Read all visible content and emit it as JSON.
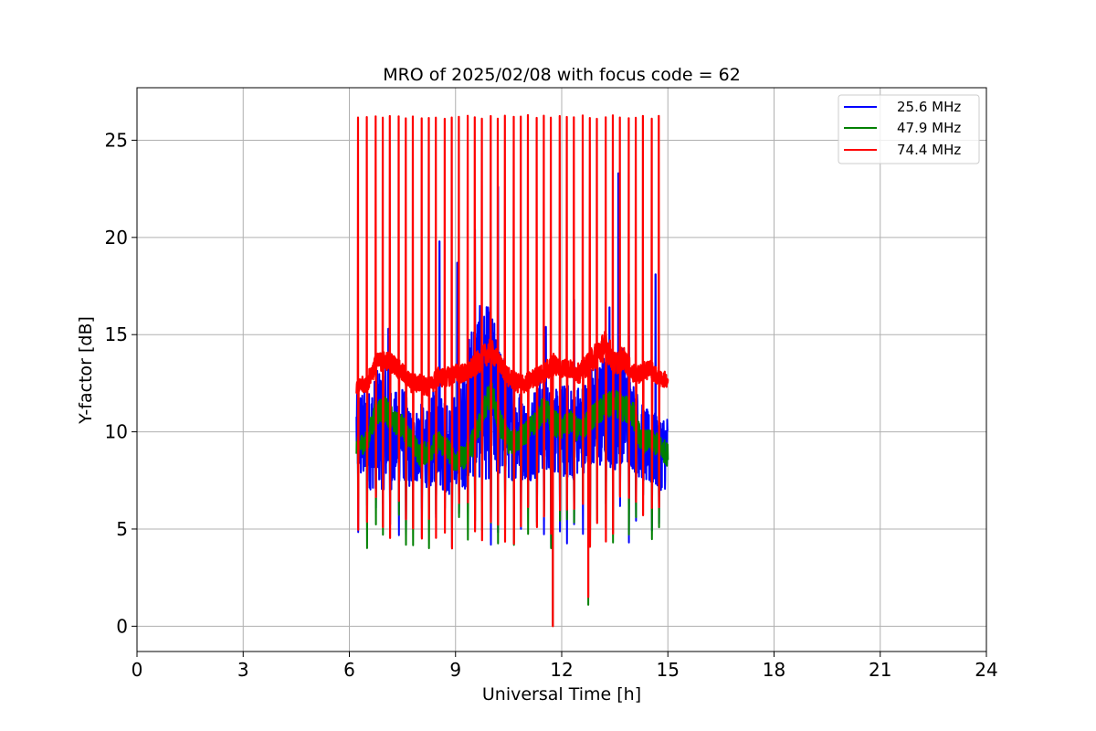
{
  "chart_data": {
    "type": "line",
    "title": "MRO of 2025/02/08 with focus code = 62",
    "xlabel": "Universal Time [h]",
    "ylabel": "Y-factor [dB]",
    "xlim": [
      0,
      24
    ],
    "ylim": [
      -1.3,
      27.7
    ],
    "x_ticks": [
      0,
      3,
      6,
      9,
      12,
      15,
      18,
      21,
      24
    ],
    "y_ticks": [
      0,
      5,
      10,
      15,
      20,
      25
    ],
    "grid": true,
    "legend_position": "upper right",
    "legend_labels": [
      "25.6 MHz",
      "47.9 MHz",
      "74.4 MHz"
    ],
    "colors": {
      "25.6 MHz": "#0000ff",
      "47.9 MHz": "#008000",
      "74.4 MHz": "#ff0000"
    },
    "observation_range_h": [
      6.2,
      15.0
    ],
    "calibration_spike_times_h": [
      6.25,
      6.5,
      6.75,
      6.95,
      7.15,
      7.4,
      7.6,
      7.8,
      8.05,
      8.25,
      8.45,
      8.7,
      8.9,
      9.1,
      9.35,
      9.55,
      9.75,
      10.0,
      10.2,
      10.4,
      10.65,
      10.85,
      11.05,
      11.3,
      11.5,
      11.7,
      11.95,
      12.15,
      12.35,
      12.6,
      12.8,
      13.0,
      13.25,
      13.45,
      13.65,
      13.9,
      14.1,
      14.3,
      14.55,
      14.75
    ],
    "calibration_spike_peak_db": 26.2,
    "calibration_dip_db": 4.0,
    "series": [
      {
        "name": "25.6 MHz",
        "x": [
          6.25,
          6.5,
          6.75,
          7.0,
          7.25,
          7.5,
          7.75,
          8.0,
          8.25,
          8.5,
          8.75,
          9.0,
          9.25,
          9.5,
          9.75,
          10.0,
          10.25,
          10.5,
          10.75,
          11.0,
          11.25,
          11.5,
          11.75,
          12.0,
          12.25,
          12.5,
          12.75,
          13.0,
          13.25,
          13.5,
          13.75,
          14.0,
          14.25,
          14.5,
          14.75,
          15.0
        ],
        "y": [
          10.0,
          9.5,
          10.0,
          10.5,
          9.5,
          10.0,
          9.0,
          9.5,
          9.0,
          10.5,
          9.0,
          9.5,
          10.0,
          12.0,
          12.0,
          12.0,
          11.0,
          10.5,
          10.0,
          9.5,
          10.0,
          10.5,
          10.0,
          10.0,
          10.0,
          10.0,
          10.5,
          11.0,
          11.0,
          11.0,
          11.5,
          10.5,
          9.5,
          9.0,
          9.0,
          9.0
        ],
        "spread": [
          2.5,
          2.5,
          3.0,
          3.5,
          2.5,
          2.5,
          2.0,
          2.0,
          2.0,
          3.0,
          2.5,
          2.5,
          3.0,
          4.5,
          4.5,
          4.5,
          3.5,
          3.0,
          2.5,
          2.0,
          2.5,
          2.5,
          2.0,
          2.5,
          2.5,
          2.5,
          2.5,
          3.0,
          3.0,
          3.0,
          3.0,
          2.5,
          2.0,
          2.0,
          2.0,
          2.0
        ],
        "peaks": [
          [
            7.1,
            15.3
          ],
          [
            8.55,
            19.8
          ],
          [
            9.05,
            18.7
          ],
          [
            9.55,
            20.4
          ],
          [
            10.2,
            22.6
          ],
          [
            11.55,
            15.4
          ],
          [
            12.35,
            16.8
          ],
          [
            13.35,
            16.4
          ],
          [
            13.6,
            23.3
          ],
          [
            13.9,
            17.1
          ],
          [
            14.65,
            18.1
          ]
        ]
      },
      {
        "name": "47.9 MHz",
        "x": [
          6.25,
          6.5,
          6.75,
          7.0,
          7.25,
          7.5,
          7.75,
          8.0,
          8.25,
          8.5,
          8.75,
          9.0,
          9.25,
          9.5,
          9.75,
          10.0,
          10.25,
          10.5,
          10.75,
          11.0,
          11.25,
          11.5,
          11.75,
          12.0,
          12.25,
          12.5,
          12.75,
          13.0,
          13.25,
          13.5,
          13.75,
          14.0,
          14.25,
          14.5,
          14.75,
          15.0
        ],
        "y": [
          9.3,
          9.5,
          11.0,
          11.2,
          10.5,
          10.3,
          9.5,
          8.8,
          9.0,
          9.5,
          9.2,
          8.5,
          8.7,
          9.5,
          11.0,
          12.0,
          10.5,
          9.5,
          9.5,
          10.0,
          10.5,
          11.2,
          10.5,
          10.2,
          10.5,
          10.0,
          10.5,
          11.0,
          11.3,
          11.5,
          11.2,
          11.0,
          9.5,
          9.5,
          9.3,
          8.8
        ],
        "spread": [
          0.5,
          0.6,
          0.7,
          0.7,
          0.6,
          0.6,
          0.6,
          0.6,
          0.6,
          0.6,
          0.6,
          0.6,
          0.6,
          0.7,
          0.7,
          0.7,
          0.7,
          0.6,
          0.6,
          0.6,
          0.6,
          0.7,
          0.7,
          0.6,
          0.6,
          0.6,
          0.7,
          0.7,
          0.7,
          0.7,
          0.7,
          0.7,
          0.6,
          0.6,
          0.6,
          0.6
        ],
        "dips": [
          [
            11.75,
            0.0
          ],
          [
            12.75,
            1.1
          ]
        ]
      },
      {
        "name": "74.4 MHz",
        "x": [
          6.25,
          6.5,
          6.75,
          7.0,
          7.25,
          7.5,
          7.75,
          8.0,
          8.25,
          8.5,
          8.75,
          9.0,
          9.25,
          9.5,
          9.75,
          10.0,
          10.25,
          10.5,
          10.75,
          11.0,
          11.25,
          11.5,
          11.75,
          12.0,
          12.25,
          12.5,
          12.75,
          13.0,
          13.25,
          13.5,
          13.75,
          14.0,
          14.25,
          14.5,
          14.75,
          15.0
        ],
        "y": [
          12.3,
          12.5,
          13.5,
          13.7,
          13.5,
          13.0,
          12.5,
          12.5,
          12.3,
          12.8,
          12.8,
          13.0,
          13.0,
          13.3,
          13.8,
          14.2,
          13.5,
          12.8,
          12.5,
          12.5,
          12.8,
          13.0,
          13.5,
          13.3,
          13.2,
          13.0,
          13.5,
          14.0,
          14.5,
          13.5,
          13.8,
          13.0,
          13.0,
          13.3,
          12.7,
          12.7
        ],
        "spread": [
          0.4,
          0.5,
          0.5,
          0.5,
          0.5,
          0.5,
          0.5,
          0.5,
          0.5,
          0.5,
          0.5,
          0.5,
          0.5,
          0.6,
          0.6,
          0.6,
          0.5,
          0.5,
          0.5,
          0.5,
          0.5,
          0.5,
          0.6,
          0.5,
          0.5,
          0.5,
          0.6,
          0.7,
          0.8,
          0.6,
          0.6,
          0.5,
          0.5,
          0.5,
          0.4,
          0.4
        ],
        "dips": [
          [
            11.75,
            0.0
          ],
          [
            12.75,
            1.5
          ]
        ]
      }
    ]
  }
}
